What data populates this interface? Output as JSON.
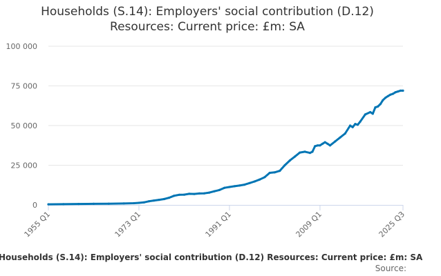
{
  "title_line1": "Households (S.14): Employers' social contribution (D.12)",
  "title_line2": "Resources: Current price: £m: SA",
  "footer_title": "Households (S.14): Employers' social contribution (D.12) Resources: Current price: £m: SA",
  "footer_source": "Source:",
  "colors": {
    "series": "#0075b4",
    "grid": "#e6e6e6",
    "axis": "#ccd6eb"
  },
  "chart_data": {
    "type": "line",
    "title": "Households (S.14): Employers' social contribution (D.12) Resources: Current price: £m: SA",
    "xlabel": "",
    "ylabel": "",
    "ylim": [
      0,
      100000
    ],
    "yticks": [
      0,
      25000,
      50000,
      75000,
      100000
    ],
    "ytick_labels": [
      "0",
      "25 000",
      "50 000",
      "75 000",
      "100 000"
    ],
    "xticks": [
      1955,
      1973,
      1991,
      2009,
      2025.5
    ],
    "xtick_labels": [
      "1955 Q1",
      "1973 Q1",
      "1991 Q1",
      "2009 Q1",
      "2025 Q3"
    ],
    "xlim": [
      1955,
      2025.5
    ],
    "grid": true,
    "legend": "none",
    "series": [
      {
        "x": [
          1955,
          1958,
          1961,
          1964,
          1967,
          1970,
          1972,
          1973,
          1974,
          1975,
          1976,
          1977,
          1978,
          1979,
          1980,
          1981,
          1982,
          1983,
          1984,
          1985,
          1986,
          1987,
          1988,
          1989,
          1990,
          1991,
          1992,
          1993,
          1994,
          1995,
          1996,
          1997,
          1998,
          1999,
          2000,
          2001,
          2002,
          2003,
          2004,
          2005,
          2006,
          2007,
          2007.5,
          2008,
          2008.5,
          2009,
          2009.5,
          2010,
          2010.5,
          2011,
          2012,
          2013,
          2014,
          2015,
          2015.5,
          2016,
          2016.5,
          2017,
          2018,
          2019,
          2019.5,
          2020,
          2020.5,
          2021,
          2021.5,
          2022,
          2022.5,
          2023,
          2023.5,
          2024,
          2024.5,
          2025,
          2025.5
        ],
        "values": [
          400,
          500,
          600,
          700,
          800,
          900,
          1100,
          1300,
          1600,
          2300,
          2800,
          3200,
          3700,
          4500,
          5800,
          6400,
          6500,
          7000,
          6900,
          7200,
          7300,
          7800,
          8600,
          9400,
          10800,
          11300,
          11800,
          12200,
          12800,
          13800,
          14800,
          16000,
          17500,
          20200,
          20500,
          21500,
          25000,
          28000,
          30500,
          33000,
          33500,
          32800,
          33500,
          37000,
          37500,
          37500,
          38500,
          39500,
          38500,
          37500,
          40000,
          42500,
          45000,
          50000,
          49000,
          51000,
          50500,
          52500,
          57000,
          58500,
          57500,
          61500,
          62000,
          63500,
          66000,
          67500,
          68500,
          69500,
          70000,
          71000,
          71500,
          72000,
          72000
        ]
      }
    ]
  }
}
